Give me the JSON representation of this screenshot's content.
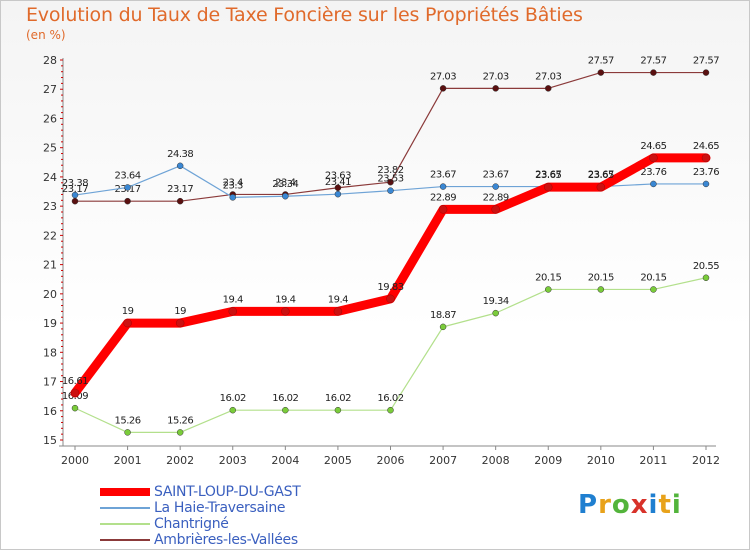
{
  "header": {
    "title": "Evolution du Taux de Taxe Foncière sur les Propriétés Bâties",
    "unit": "(en %)"
  },
  "brand": {
    "letters": [
      "P",
      "r",
      "o",
      "x",
      "i",
      "t",
      "i"
    ],
    "colors": [
      "#1f7fd0",
      "#e8a21a",
      "#53b43b",
      "#d8322a",
      "#1f7fd0",
      "#e8a21a",
      "#53b43b"
    ]
  },
  "chart_data": {
    "type": "line",
    "title": "Evolution du Taux de Taxe Foncière sur les Propriétés Bâties",
    "ylabel": "(en %)",
    "xlabel": "",
    "ylim": [
      15,
      28
    ],
    "x": [
      "2000",
      "2001",
      "2002",
      "2003",
      "2004",
      "2005",
      "2006",
      "2007",
      "2008",
      "2009",
      "2010",
      "2011",
      "2012"
    ],
    "yticks": [
      15,
      16,
      17,
      18,
      19,
      20,
      21,
      22,
      23,
      24,
      25,
      26,
      27,
      28
    ],
    "grid": false,
    "series": [
      {
        "name": "SAINT-LOUP-DU-GAST",
        "color": "#ff0000",
        "marker": "#cc1111",
        "values": [
          16.61,
          19,
          19,
          19.4,
          19.4,
          19.4,
          19.83,
          22.89,
          22.89,
          23.65,
          23.65,
          24.65,
          24.65
        ],
        "labels": [
          "16.61",
          "19",
          "19",
          "19.4",
          "19.4",
          "19.4",
          "19.83",
          "22.89",
          "22.89",
          "23.65",
          "23.65",
          "24.65",
          "24.65"
        ]
      },
      {
        "name": "La Haie-Traversaine",
        "color": "#6ea3d6",
        "marker": "#3a87d3",
        "values": [
          23.38,
          23.64,
          24.38,
          23.3,
          23.34,
          23.41,
          23.53,
          23.67,
          23.67,
          23.67,
          23.67,
          23.76,
          23.76
        ],
        "labels": [
          "23.38",
          "23.64",
          "24.38",
          "23.3",
          "23.34",
          "23.41",
          "23.53",
          "23.67",
          "23.67",
          "23.67",
          "23.67",
          "23.76",
          "23.76"
        ]
      },
      {
        "name": "Chantrigné",
        "color": "#b3e08c",
        "marker": "#7acc3a",
        "values": [
          16.09,
          15.26,
          15.26,
          16.02,
          16.02,
          16.02,
          16.02,
          18.87,
          19.34,
          20.15,
          20.15,
          20.15,
          20.55
        ],
        "labels": [
          "16.09",
          "15.26",
          "15.26",
          "16.02",
          "16.02",
          "16.02",
          "16.02",
          "18.87",
          "19.34",
          "20.15",
          "20.15",
          "20.15",
          "20.55"
        ]
      },
      {
        "name": "Ambrières-les-Vallées",
        "color": "#8b3a3a",
        "marker": "#5a1010",
        "values": [
          23.17,
          23.17,
          23.17,
          23.4,
          23.4,
          23.63,
          23.82,
          27.03,
          27.03,
          27.03,
          27.57,
          27.57,
          27.57
        ],
        "labels": [
          "23.17",
          "23.17",
          "23.17",
          "23.4",
          "23.4",
          "23.63",
          "23.82",
          "27.03",
          "27.03",
          "27.03",
          "27.57",
          "27.57",
          "27.57"
        ]
      }
    ]
  }
}
